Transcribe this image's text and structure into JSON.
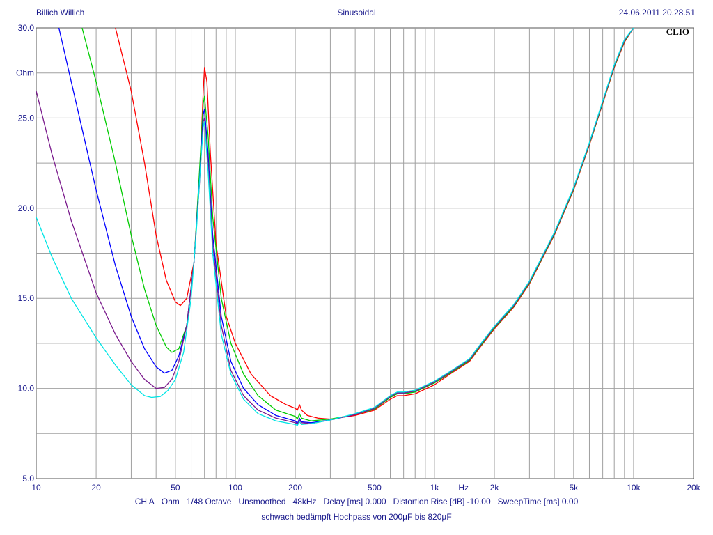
{
  "header": {
    "left": "Billich Willich",
    "center": "Sinusoidal",
    "right": "24.06.2011 20.28.51"
  },
  "logo": "CLIO",
  "footer": {
    "items": [
      "CH A",
      "Ohm",
      "1/48 Octave",
      "Unsmoothed",
      "48kHz",
      "Delay [ms] 0.000",
      "Distortion Rise [dB] -10.00",
      "SweepTime [ms] 0.00"
    ],
    "caption": "schwach bedämpft Hochpass von 200µF bis 820µF"
  },
  "chart_data": {
    "type": "line",
    "title": "",
    "x_scale": "log",
    "xlim": [
      10,
      20000
    ],
    "ylim": [
      5.0,
      30.0
    ],
    "ylabel": "Ohm",
    "xunit": "Hz",
    "grid": true,
    "y_ticks": [
      "5.0",
      "10.0",
      "15.0",
      "20.0",
      "25.0",
      "30.0"
    ],
    "x_ticks": [
      {
        "value": 10,
        "label": "10"
      },
      {
        "value": 20,
        "label": "20"
      },
      {
        "value": 50,
        "label": "50"
      },
      {
        "value": 100,
        "label": "100"
      },
      {
        "value": 200,
        "label": "200"
      },
      {
        "value": 500,
        "label": "500"
      },
      {
        "value": 1000,
        "label": "1k"
      },
      {
        "value": 2000,
        "label": "2k"
      },
      {
        "value": 5000,
        "label": "5k"
      },
      {
        "value": 10000,
        "label": "10k"
      },
      {
        "value": 20000,
        "label": "20k"
      }
    ],
    "series": [
      {
        "color": "#ff0000",
        "points": [
          [
            25,
            30
          ],
          [
            30,
            26.5
          ],
          [
            35,
            22.5
          ],
          [
            40,
            18.5
          ],
          [
            45,
            16
          ],
          [
            50,
            14.8
          ],
          [
            53,
            14.6
          ],
          [
            57,
            15
          ],
          [
            62,
            17
          ],
          [
            66,
            21.5
          ],
          [
            69,
            26.5
          ],
          [
            70,
            27.8
          ],
          [
            72,
            27
          ],
          [
            75,
            23
          ],
          [
            80,
            18
          ],
          [
            90,
            14
          ],
          [
            100,
            12.5
          ],
          [
            120,
            10.8
          ],
          [
            150,
            9.6
          ],
          [
            180,
            9.1
          ],
          [
            200,
            8.9
          ],
          [
            205,
            8.8
          ],
          [
            210,
            9.1
          ],
          [
            215,
            8.8
          ],
          [
            230,
            8.5
          ],
          [
            260,
            8.35
          ],
          [
            300,
            8.3
          ],
          [
            400,
            8.5
          ],
          [
            500,
            8.8
          ],
          [
            600,
            9.4
          ],
          [
            650,
            9.6
          ],
          [
            700,
            9.6
          ],
          [
            800,
            9.7
          ],
          [
            1000,
            10.2
          ],
          [
            1200,
            10.8
          ],
          [
            1500,
            11.5
          ],
          [
            1700,
            12.3
          ],
          [
            2000,
            13.3
          ],
          [
            2500,
            14.5
          ],
          [
            3000,
            15.8
          ],
          [
            4000,
            18.5
          ],
          [
            5000,
            21
          ],
          [
            6000,
            23.5
          ],
          [
            7000,
            25.8
          ],
          [
            8000,
            27.8
          ],
          [
            9000,
            29.2
          ],
          [
            10000,
            30
          ]
        ]
      },
      {
        "color": "#00cc00",
        "points": [
          [
            17,
            30
          ],
          [
            20,
            27
          ],
          [
            25,
            22.5
          ],
          [
            30,
            18.5
          ],
          [
            35,
            15.5
          ],
          [
            40,
            13.5
          ],
          [
            45,
            12.3
          ],
          [
            48,
            12
          ],
          [
            52,
            12.2
          ],
          [
            57,
            13.5
          ],
          [
            62,
            17
          ],
          [
            66,
            22
          ],
          [
            69,
            25.8
          ],
          [
            70,
            26.2
          ],
          [
            73,
            24
          ],
          [
            77,
            19.5
          ],
          [
            85,
            15
          ],
          [
            95,
            12.5
          ],
          [
            110,
            10.8
          ],
          [
            130,
            9.6
          ],
          [
            160,
            8.8
          ],
          [
            200,
            8.45
          ],
          [
            205,
            8.3
          ],
          [
            210,
            8.6
          ],
          [
            215,
            8.35
          ],
          [
            240,
            8.2
          ],
          [
            300,
            8.3
          ],
          [
            400,
            8.55
          ],
          [
            500,
            8.85
          ],
          [
            600,
            9.5
          ],
          [
            650,
            9.7
          ],
          [
            700,
            9.7
          ],
          [
            800,
            9.8
          ],
          [
            1000,
            10.3
          ],
          [
            1200,
            10.85
          ],
          [
            1500,
            11.55
          ],
          [
            1700,
            12.35
          ],
          [
            2000,
            13.35
          ],
          [
            2500,
            14.55
          ],
          [
            3000,
            15.85
          ],
          [
            4000,
            18.55
          ],
          [
            5000,
            21.05
          ],
          [
            6000,
            23.55
          ],
          [
            7000,
            25.85
          ],
          [
            8000,
            27.85
          ],
          [
            9000,
            29.25
          ],
          [
            10000,
            30
          ]
        ]
      },
      {
        "color": "#0000ff",
        "points": [
          [
            13,
            30
          ],
          [
            15,
            27
          ],
          [
            20,
            21
          ],
          [
            25,
            16.8
          ],
          [
            30,
            14
          ],
          [
            35,
            12.2
          ],
          [
            40,
            11.2
          ],
          [
            44,
            10.85
          ],
          [
            48,
            11
          ],
          [
            52,
            11.8
          ],
          [
            57,
            13.5
          ],
          [
            62,
            17
          ],
          [
            66,
            21.5
          ],
          [
            69,
            25.2
          ],
          [
            70,
            25.5
          ],
          [
            73,
            23
          ],
          [
            77,
            18.5
          ],
          [
            85,
            14
          ],
          [
            95,
            11.5
          ],
          [
            110,
            10
          ],
          [
            130,
            9.1
          ],
          [
            160,
            8.5
          ],
          [
            200,
            8.2
          ],
          [
            205,
            8.05
          ],
          [
            210,
            8.35
          ],
          [
            215,
            8.15
          ],
          [
            240,
            8.1
          ],
          [
            300,
            8.25
          ],
          [
            400,
            8.55
          ],
          [
            500,
            8.9
          ],
          [
            600,
            9.55
          ],
          [
            650,
            9.75
          ],
          [
            700,
            9.75
          ],
          [
            800,
            9.85
          ],
          [
            1000,
            10.35
          ],
          [
            1200,
            10.9
          ],
          [
            1500,
            11.6
          ],
          [
            1700,
            12.4
          ],
          [
            2000,
            13.4
          ],
          [
            2500,
            14.6
          ],
          [
            3000,
            15.9
          ],
          [
            4000,
            18.6
          ],
          [
            5000,
            21.1
          ],
          [
            6000,
            23.6
          ],
          [
            7000,
            25.9
          ],
          [
            8000,
            27.9
          ],
          [
            9000,
            29.3
          ],
          [
            10000,
            30
          ]
        ]
      },
      {
        "color": "#7a1a8c",
        "points": [
          [
            10,
            26.5
          ],
          [
            12,
            23
          ],
          [
            15,
            19.3
          ],
          [
            20,
            15.3
          ],
          [
            25,
            13
          ],
          [
            30,
            11.5
          ],
          [
            35,
            10.5
          ],
          [
            40,
            10
          ],
          [
            44,
            10.05
          ],
          [
            48,
            10.5
          ],
          [
            52,
            11.5
          ],
          [
            57,
            13.5
          ],
          [
            62,
            17
          ],
          [
            66,
            21.3
          ],
          [
            69,
            24.8
          ],
          [
            70,
            25
          ],
          [
            73,
            22.5
          ],
          [
            77,
            18
          ],
          [
            85,
            13.5
          ],
          [
            95,
            11
          ],
          [
            110,
            9.6
          ],
          [
            130,
            8.8
          ],
          [
            160,
            8.35
          ],
          [
            200,
            8.1
          ],
          [
            205,
            8
          ],
          [
            210,
            8.25
          ],
          [
            215,
            8.1
          ],
          [
            240,
            8.05
          ],
          [
            300,
            8.25
          ],
          [
            400,
            8.55
          ],
          [
            500,
            8.9
          ],
          [
            600,
            9.55
          ],
          [
            650,
            9.75
          ],
          [
            700,
            9.75
          ],
          [
            800,
            9.85
          ],
          [
            1000,
            10.35
          ],
          [
            1200,
            10.9
          ],
          [
            1500,
            11.6
          ],
          [
            1700,
            12.4
          ],
          [
            2000,
            13.4
          ],
          [
            2500,
            14.6
          ],
          [
            3000,
            15.9
          ],
          [
            4000,
            18.6
          ],
          [
            5000,
            21.1
          ],
          [
            6000,
            23.6
          ],
          [
            7000,
            25.9
          ],
          [
            8000,
            27.9
          ],
          [
            9000,
            29.3
          ],
          [
            10000,
            30
          ]
        ]
      },
      {
        "color": "#00e5e5",
        "points": [
          [
            10,
            19.5
          ],
          [
            12,
            17.3
          ],
          [
            15,
            15
          ],
          [
            20,
            12.8
          ],
          [
            25,
            11.3
          ],
          [
            30,
            10.2
          ],
          [
            35,
            9.6
          ],
          [
            38,
            9.5
          ],
          [
            42,
            9.55
          ],
          [
            46,
            9.9
          ],
          [
            50,
            10.5
          ],
          [
            55,
            12
          ],
          [
            60,
            15
          ],
          [
            64,
            19
          ],
          [
            67,
            22.5
          ],
          [
            69,
            24.5
          ],
          [
            70,
            24.8
          ],
          [
            73,
            22
          ],
          [
            77,
            17.5
          ],
          [
            85,
            13
          ],
          [
            95,
            10.8
          ],
          [
            110,
            9.4
          ],
          [
            130,
            8.6
          ],
          [
            160,
            8.2
          ],
          [
            200,
            8.0
          ],
          [
            205,
            7.95
          ],
          [
            210,
            8.15
          ],
          [
            215,
            8.0
          ],
          [
            240,
            8.05
          ],
          [
            300,
            8.25
          ],
          [
            400,
            8.6
          ],
          [
            500,
            8.95
          ],
          [
            600,
            9.6
          ],
          [
            650,
            9.8
          ],
          [
            700,
            9.8
          ],
          [
            800,
            9.9
          ],
          [
            1000,
            10.4
          ],
          [
            1200,
            10.95
          ],
          [
            1500,
            11.65
          ],
          [
            1700,
            12.45
          ],
          [
            2000,
            13.45
          ],
          [
            2500,
            14.65
          ],
          [
            3000,
            15.95
          ],
          [
            4000,
            18.65
          ],
          [
            5000,
            21.15
          ],
          [
            6000,
            23.65
          ],
          [
            7000,
            25.95
          ],
          [
            8000,
            27.95
          ],
          [
            9000,
            29.35
          ],
          [
            10000,
            30
          ]
        ]
      }
    ]
  }
}
